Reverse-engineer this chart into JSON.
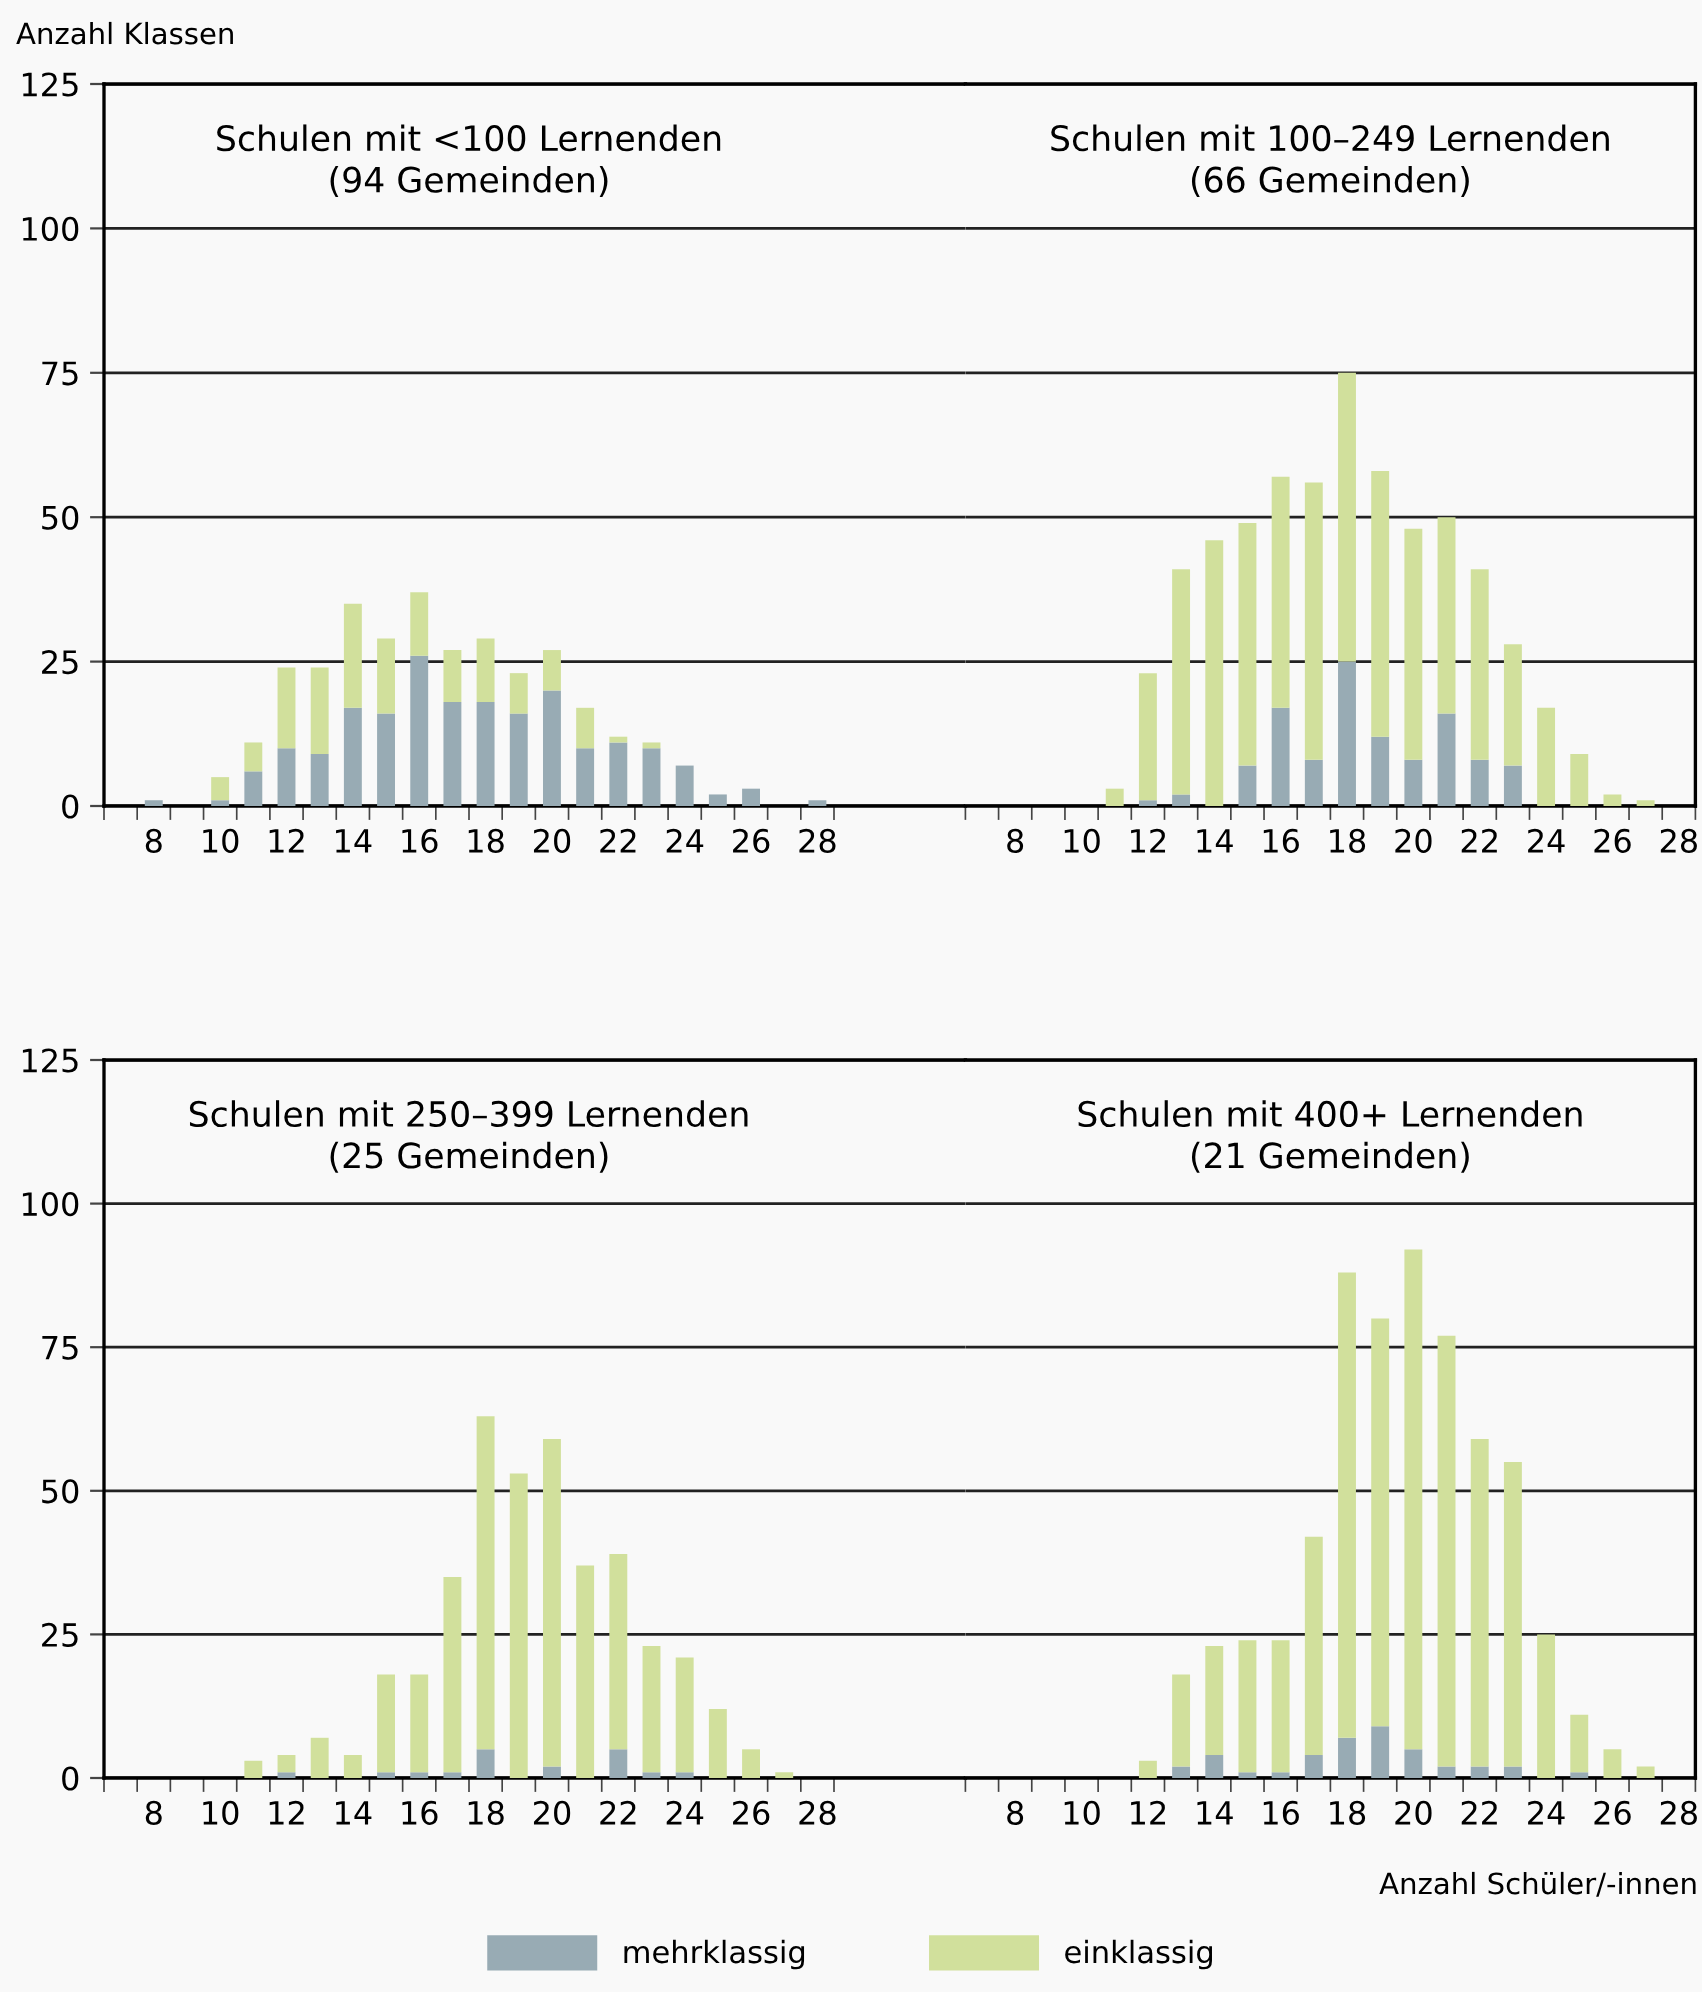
{
  "chart_data": [
    {
      "type": "bar",
      "stacked": true,
      "title": "Schulen mit <100 Lernenden\n(94 Gemeinden)",
      "ylabel": "Anzahl Klassen",
      "categories": [
        null,
        "8",
        null,
        "10",
        null,
        "12",
        null,
        "14",
        null,
        "16",
        null,
        "18",
        null,
        "20",
        null,
        "22",
        null,
        "24",
        null,
        "26",
        null,
        "28"
      ],
      "series": [
        {
          "name": "mehrklassig",
          "color": "#98abb4",
          "values": [
            0,
            1,
            0,
            1,
            6,
            10,
            9,
            17,
            16,
            26,
            18,
            18,
            16,
            20,
            10,
            11,
            10,
            7,
            2,
            3,
            0,
            1
          ]
        },
        {
          "name": "einklassig",
          "color": "#d1e09c",
          "values": [
            0,
            0,
            0,
            4,
            5,
            14,
            15,
            18,
            13,
            11,
            9,
            11,
            7,
            7,
            7,
            1,
            1,
            0,
            0,
            0,
            0,
            0
          ]
        }
      ],
      "ylim": [
        0,
        125
      ],
      "yticks": [
        0,
        25,
        50,
        75,
        100,
        125
      ],
      "grid": "y",
      "legend": "bottom"
    },
    {
      "type": "bar",
      "stacked": true,
      "title": "Schulen mit 100–249 Lernenden\n(66 Gemeinden)",
      "categories": [
        null,
        "8",
        null,
        "10",
        null,
        "12",
        null,
        "14",
        null,
        "16",
        null,
        "18",
        null,
        "20",
        null,
        "22",
        null,
        "24",
        null,
        "26",
        null,
        "28"
      ],
      "series": [
        {
          "name": "mehrklassig",
          "color": "#98abb4",
          "values": [
            0,
            0,
            0,
            0,
            0,
            1,
            2,
            0,
            7,
            17,
            8,
            25,
            12,
            8,
            16,
            8,
            7,
            0,
            0,
            0,
            0,
            0
          ]
        },
        {
          "name": "einklassig",
          "color": "#d1e09c",
          "values": [
            0,
            0,
            0,
            0,
            3,
            22,
            39,
            46,
            42,
            40,
            48,
            50,
            46,
            40,
            34,
            33,
            21,
            17,
            9,
            2,
            1,
            0
          ]
        }
      ],
      "ylim": [
        0,
        125
      ],
      "yticks": [
        0,
        25,
        50,
        75,
        100,
        125
      ],
      "grid": "y",
      "legend": "bottom",
      "tick_labels": "x"
    },
    {
      "type": "bar",
      "stacked": true,
      "title": "Schulen mit 250–399 Lernenden\n(25 Gemeinden)",
      "categories": [
        null,
        "8",
        null,
        "10",
        null,
        "12",
        null,
        "14",
        null,
        "16",
        null,
        "18",
        null,
        "20",
        null,
        "22",
        null,
        "24",
        null,
        "26",
        null,
        "28"
      ],
      "series": [
        {
          "name": "mehrklassig",
          "color": "#98abb4",
          "values": [
            0,
            0,
            0,
            0,
            0,
            1,
            0,
            0,
            1,
            1,
            1,
            5,
            0,
            2,
            0,
            5,
            1,
            1,
            0,
            0,
            0,
            0
          ]
        },
        {
          "name": "einklassig",
          "color": "#d1e09c",
          "values": [
            0,
            0,
            0,
            0,
            3,
            3,
            7,
            4,
            17,
            17,
            34,
            58,
            53,
            57,
            37,
            34,
            22,
            20,
            12,
            5,
            1,
            0
          ]
        }
      ],
      "ylim": [
        0,
        125
      ],
      "yticks": [
        0,
        25,
        50,
        75,
        100,
        125
      ],
      "grid": "y",
      "legend": "bottom"
    },
    {
      "type": "bar",
      "stacked": true,
      "title": "Schulen mit 400+ Lernenden\n(21 Gemeinden)",
      "xlabel": "Anzahl Schüler/-innen",
      "categories": [
        null,
        "8",
        null,
        "10",
        null,
        "12",
        null,
        "14",
        null,
        "16",
        null,
        "18",
        null,
        "20",
        null,
        "22",
        null,
        "24",
        null,
        "26",
        null,
        "28"
      ],
      "series": [
        {
          "name": "mehrklassig",
          "color": "#98abb4",
          "values": [
            0,
            0,
            0,
            0,
            0,
            0,
            2,
            4,
            1,
            1,
            4,
            7,
            9,
            5,
            2,
            2,
            2,
            0,
            1,
            0,
            0,
            0
          ]
        },
        {
          "name": "einklassig",
          "color": "#d1e09c",
          "values": [
            0,
            0,
            0,
            0,
            0,
            3,
            16,
            19,
            23,
            23,
            38,
            81,
            71,
            87,
            75,
            57,
            53,
            25,
            10,
            5,
            2,
            0
          ]
        }
      ],
      "ylim": [
        0,
        125
      ],
      "yticks": [
        0,
        25,
        50,
        75,
        100,
        125
      ],
      "grid": "y",
      "legend": "bottom",
      "tick_labels": "x"
    }
  ]
}
